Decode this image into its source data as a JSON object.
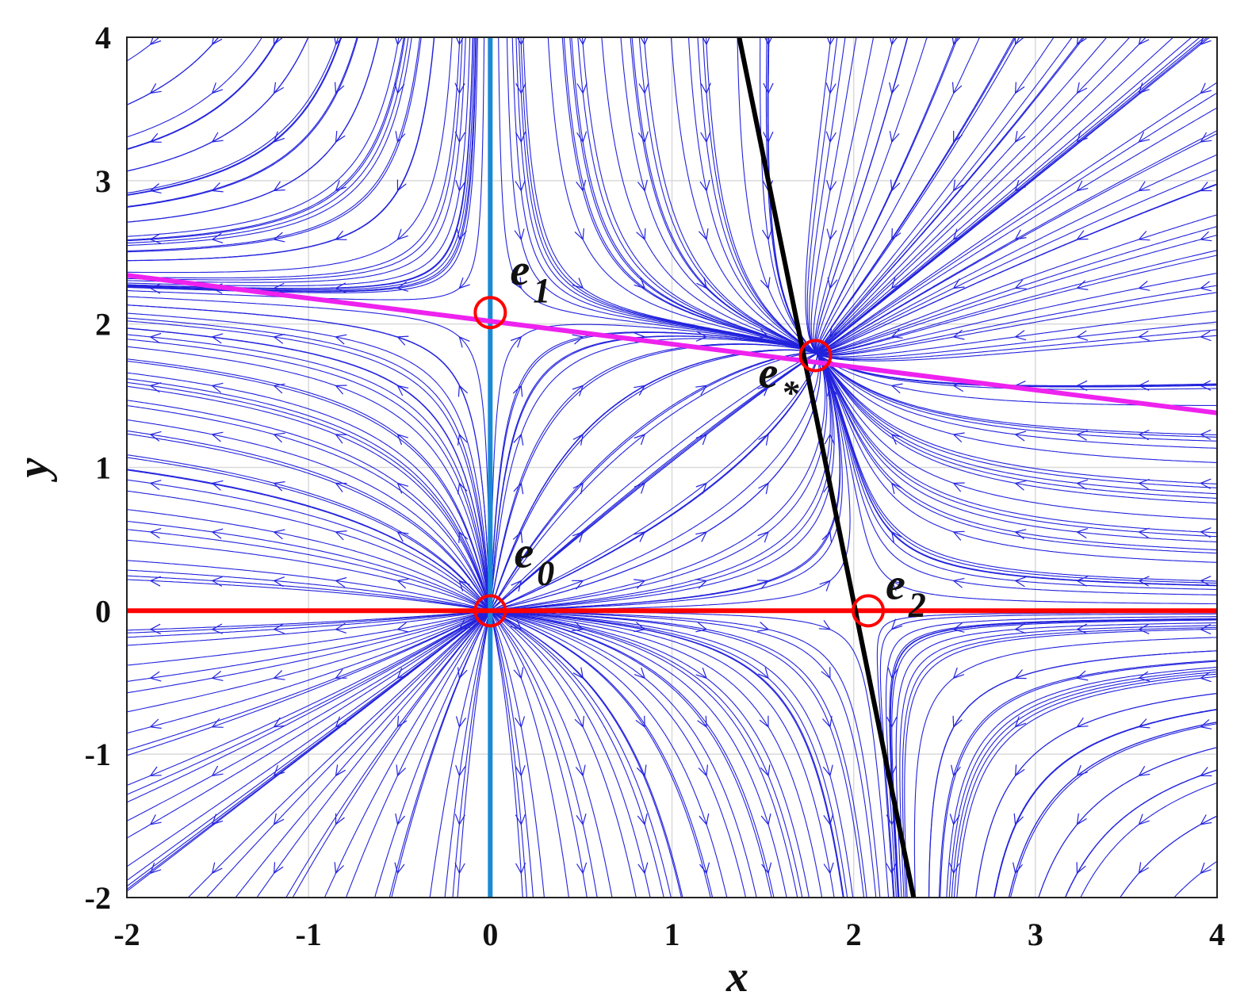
{
  "chart_data": {
    "type": "streamplot",
    "xlabel": "x",
    "ylabel": "y",
    "xlim": [
      -2,
      4
    ],
    "ylim": [
      -2,
      4
    ],
    "xticks": [
      "-2",
      "-1",
      "0",
      "1",
      "2",
      "3",
      "4"
    ],
    "yticks": [
      "-2",
      "-1",
      "0",
      "1",
      "2",
      "3",
      "4"
    ],
    "grid": true,
    "colors": {
      "streamlines": "#2222dd",
      "x_nullcline_axis": "#1a8ad4",
      "y_nullcline_axis": "#ff0000",
      "magenta_nullcline": "#ee22ee",
      "black_nullcline": "#000000",
      "equilibrium_marker": "#ff0000"
    },
    "nullclines": [
      {
        "id": "x-zero",
        "color": "#1a8ad4",
        "points": [
          [
            0,
            -2
          ],
          [
            0,
            4
          ]
        ]
      },
      {
        "id": "y-zero",
        "color": "#ff0000",
        "points": [
          [
            -2,
            0
          ],
          [
            4,
            0
          ]
        ]
      },
      {
        "id": "magenta",
        "color": "#ee22ee",
        "points": [
          [
            -2,
            2.34
          ],
          [
            4,
            1.38
          ]
        ]
      },
      {
        "id": "black",
        "color": "#000000",
        "points": [
          [
            1.37,
            4
          ],
          [
            2.33,
            -2
          ]
        ]
      }
    ],
    "equilibria": [
      {
        "name": "e0",
        "base": "e",
        "sub": "0",
        "x": 0,
        "y": 0
      },
      {
        "name": "e1",
        "base": "e",
        "sub": "1",
        "x": 0,
        "y": 2.08
      },
      {
        "name": "e2",
        "base": "e",
        "sub": "2",
        "x": 2.08,
        "y": 0
      },
      {
        "name": "e*",
        "base": "e",
        "sub": "*",
        "x": 1.79,
        "y": 1.78
      }
    ]
  }
}
